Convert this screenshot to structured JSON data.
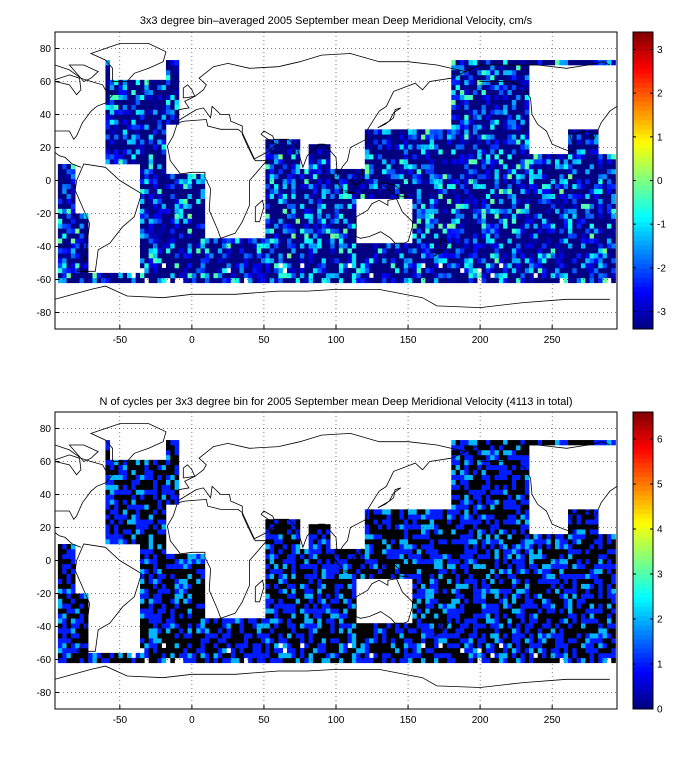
{
  "chart_data": [
    {
      "type": "heatmap",
      "title": "3x3 degree bin–averaged 2005 September mean Deep Meridional Velocity, cm/s",
      "xlabel": "",
      "ylabel": "",
      "xlim": [
        -95,
        295
      ],
      "ylim": [
        -90,
        90
      ],
      "x_ticks": [
        -50,
        0,
        50,
        100,
        150,
        200,
        250
      ],
      "y_ticks": [
        -80,
        -60,
        -40,
        -20,
        0,
        20,
        40,
        60,
        80
      ],
      "grid": true,
      "colorbar": {
        "min": -3.4,
        "max": 3.4,
        "ticks": [
          -3,
          -2,
          -1,
          0,
          1,
          2,
          3
        ],
        "colormap": "jet",
        "placement": "right"
      },
      "bin_size_deg": 3,
      "value_kind": "signed",
      "seed": 7
    },
    {
      "type": "heatmap",
      "title": "N of cycles per 3x3 degree bin for 2005 September mean Deep Meridional Velocity (4113 in total)",
      "xlabel": "",
      "ylabel": "",
      "xlim": [
        -95,
        295
      ],
      "ylim": [
        -90,
        90
      ],
      "x_ticks": [
        -50,
        0,
        50,
        100,
        150,
        200,
        250
      ],
      "y_ticks": [
        -80,
        -60,
        -40,
        -20,
        0,
        20,
        40,
        60,
        80
      ],
      "grid": true,
      "colorbar": {
        "min": 0,
        "max": 6.6,
        "ticks": [
          0,
          1,
          2,
          3,
          4,
          5,
          6
        ],
        "colormap": "jet",
        "placement": "right"
      },
      "bin_size_deg": 3,
      "value_kind": "count",
      "seed": 7
    }
  ]
}
